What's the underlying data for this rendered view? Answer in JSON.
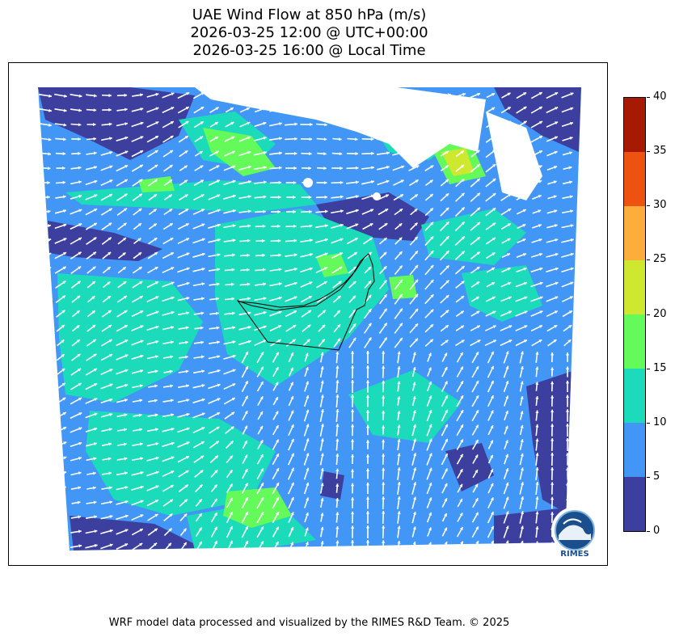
{
  "title": {
    "line1": "UAE Wind Flow at 850 hPa (m/s)",
    "line2": "2026-03-25 12:00 @ UTC+00:00",
    "line3": "2026-03-25 16:00 @ Local Time"
  },
  "colorbar": {
    "ticks": [
      "0",
      "5",
      "10",
      "15",
      "20",
      "25",
      "30",
      "35",
      "40"
    ],
    "colors": [
      "#3d3f9e",
      "#4296f5",
      "#1cdbba",
      "#64fb5a",
      "#cde82e",
      "#fbae3b",
      "#ee5211",
      "#a61a03"
    ]
  },
  "logo": {
    "text": "RIMES"
  },
  "footer": "WRF model data processed and visualized by the RIMES R&D Team. © 2025"
}
